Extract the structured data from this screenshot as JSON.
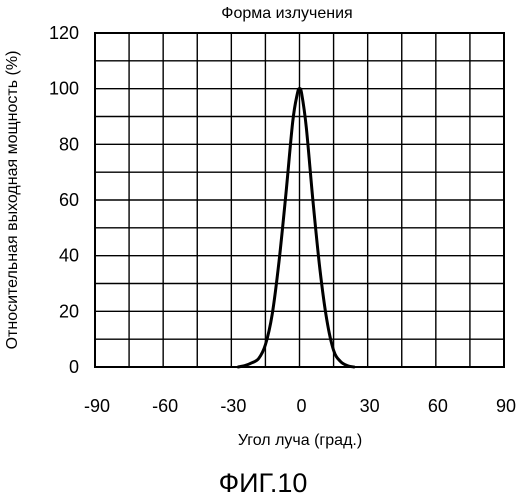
{
  "chart_data": {
    "type": "line",
    "title": "Форма излучения",
    "xlabel": "Угол луча (град.)",
    "ylabel": "Относительная выходная мощность (%)",
    "xlim": [
      -90,
      90
    ],
    "ylim": [
      0,
      120
    ],
    "xticks": [
      -90,
      -60,
      -30,
      0,
      30,
      60,
      90
    ],
    "xtick_labels": [
      "-90",
      "-60",
      "-30",
      "0",
      "30",
      "60",
      "90"
    ],
    "yticks": [
      0,
      20,
      40,
      60,
      80,
      100,
      120
    ],
    "ytick_labels": [
      "0",
      "20",
      "40",
      "60",
      "80",
      "100",
      "120"
    ],
    "grid": true,
    "series": [
      {
        "x": [
          -27,
          -24,
          -21,
          -18,
          -15,
          -12,
          -9,
          -6,
          -3,
          -1,
          0,
          1,
          3,
          6,
          9,
          12,
          15,
          18,
          21,
          24
        ],
        "y": [
          0,
          0.5,
          1.5,
          3,
          8,
          19,
          38,
          62,
          88,
          98,
          100,
          98,
          86,
          59,
          35,
          17,
          6,
          2,
          0.5,
          0
        ]
      }
    ]
  },
  "figure_label": "ФИГ.10"
}
